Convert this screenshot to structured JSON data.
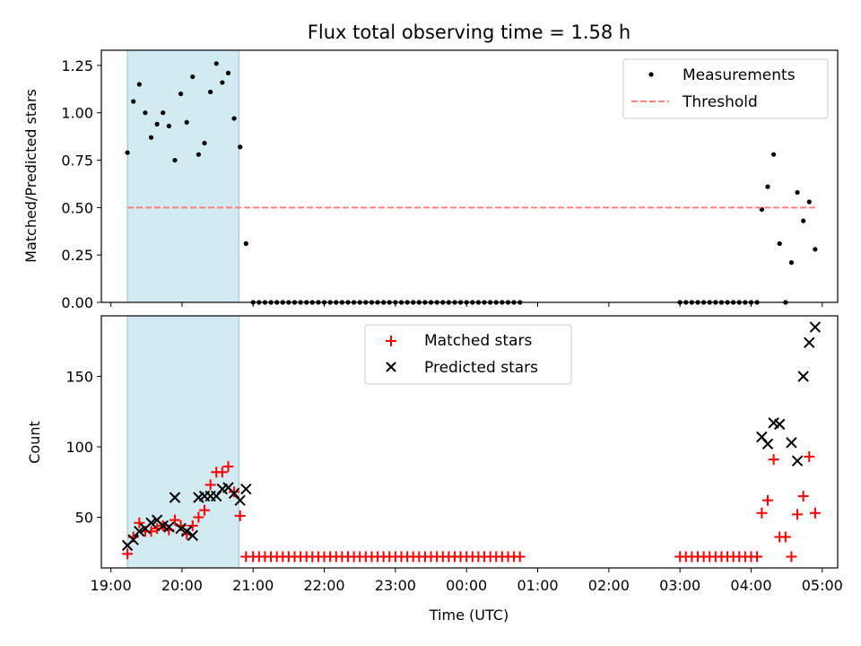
{
  "title": "Flux total observing time = 1.58 h",
  "chart_data": [
    {
      "type": "scatter",
      "panel": "top",
      "title": "Flux total observing time = 1.58 h",
      "xlabel": "",
      "ylabel": "Matched/Predicted stars",
      "xlim": [
        "18:52",
        "05:13"
      ],
      "ylim": [
        0,
        1.33
      ],
      "yticks": [
        0.0,
        0.25,
        0.5,
        0.75,
        1.0,
        1.25
      ],
      "ytick_labels": [
        "0.00",
        "0.25",
        "0.50",
        "0.75",
        "1.00",
        "1.25"
      ],
      "highlight_span": {
        "start": "19:14",
        "end": "20:48",
        "color": "#add8e6"
      },
      "legend": {
        "placement": "top-right",
        "entries": [
          "Measurements",
          "Threshold"
        ]
      },
      "series": [
        {
          "name": "Measurements",
          "marker": "dot",
          "color": "#000000",
          "points": [
            [
              "19:14",
              0.79
            ],
            [
              "19:19",
              1.06
            ],
            [
              "19:24",
              1.15
            ],
            [
              "19:29",
              1.0
            ],
            [
              "19:34",
              0.87
            ],
            [
              "19:39",
              0.94
            ],
            [
              "19:44",
              1.0
            ],
            [
              "19:49",
              0.93
            ],
            [
              "19:54",
              0.75
            ],
            [
              "19:59",
              1.1
            ],
            [
              "20:04",
              0.95
            ],
            [
              "20:09",
              1.19
            ],
            [
              "20:14",
              0.78
            ],
            [
              "20:19",
              0.84
            ],
            [
              "20:24",
              1.11
            ],
            [
              "20:29",
              1.26
            ],
            [
              "20:34",
              1.16
            ],
            [
              "20:39",
              1.21
            ],
            [
              "20:44",
              0.97
            ],
            [
              "20:49",
              0.82
            ],
            [
              "20:54",
              0.31
            ],
            [
              "21:00",
              0
            ],
            [
              "21:05",
              0
            ],
            [
              "21:10",
              0
            ],
            [
              "21:15",
              0
            ],
            [
              "21:20",
              0
            ],
            [
              "21:25",
              0
            ],
            [
              "21:30",
              0
            ],
            [
              "21:35",
              0
            ],
            [
              "21:40",
              0
            ],
            [
              "21:45",
              0
            ],
            [
              "21:50",
              0
            ],
            [
              "21:55",
              0
            ],
            [
              "22:00",
              0
            ],
            [
              "22:05",
              0
            ],
            [
              "22:10",
              0
            ],
            [
              "22:15",
              0
            ],
            [
              "22:20",
              0
            ],
            [
              "22:25",
              0
            ],
            [
              "22:30",
              0
            ],
            [
              "22:35",
              0
            ],
            [
              "22:40",
              0
            ],
            [
              "22:45",
              0
            ],
            [
              "22:50",
              0
            ],
            [
              "22:55",
              0
            ],
            [
              "23:00",
              0
            ],
            [
              "23:05",
              0
            ],
            [
              "23:10",
              0
            ],
            [
              "23:15",
              0
            ],
            [
              "23:20",
              0
            ],
            [
              "23:25",
              0
            ],
            [
              "23:30",
              0
            ],
            [
              "23:35",
              0
            ],
            [
              "23:40",
              0
            ],
            [
              "23:45",
              0
            ],
            [
              "23:50",
              0
            ],
            [
              "23:55",
              0
            ],
            [
              "00:00",
              0
            ],
            [
              "00:05",
              0
            ],
            [
              "00:10",
              0
            ],
            [
              "00:15",
              0
            ],
            [
              "00:20",
              0
            ],
            [
              "00:25",
              0
            ],
            [
              "00:30",
              0
            ],
            [
              "00:35",
              0
            ],
            [
              "00:40",
              0
            ],
            [
              "00:45",
              0
            ],
            [
              "03:00",
              0
            ],
            [
              "03:05",
              0
            ],
            [
              "03:10",
              0
            ],
            [
              "03:15",
              0
            ],
            [
              "03:20",
              0
            ],
            [
              "03:25",
              0
            ],
            [
              "03:30",
              0
            ],
            [
              "03:35",
              0
            ],
            [
              "03:40",
              0
            ],
            [
              "03:45",
              0
            ],
            [
              "03:50",
              0
            ],
            [
              "03:55",
              0
            ],
            [
              "04:00",
              0
            ],
            [
              "04:05",
              0
            ],
            [
              "04:09",
              0.49
            ],
            [
              "04:14",
              0.61
            ],
            [
              "04:19",
              0.78
            ],
            [
              "04:24",
              0.31
            ],
            [
              "04:29",
              0.0
            ],
            [
              "04:34",
              0.21
            ],
            [
              "04:39",
              0.58
            ],
            [
              "04:44",
              0.43
            ],
            [
              "04:49",
              0.53
            ],
            [
              "04:54",
              0.28
            ]
          ]
        },
        {
          "name": "Threshold",
          "marker": "dashed-line",
          "color": "#ff7f7f",
          "points": [
            [
              "19:14",
              0.5
            ],
            [
              "04:54",
              0.5
            ]
          ]
        }
      ]
    },
    {
      "type": "scatter",
      "panel": "bottom",
      "title": "",
      "xlabel": "Time (UTC)",
      "ylabel": "Count",
      "xlim": [
        "18:52",
        "05:13"
      ],
      "ylim": [
        14,
        193
      ],
      "yticks": [
        50,
        100,
        150
      ],
      "xticks": [
        "19:00",
        "20:00",
        "21:00",
        "22:00",
        "23:00",
        "00:00",
        "01:00",
        "02:00",
        "03:00",
        "04:00",
        "05:00"
      ],
      "highlight_span": {
        "start": "19:14",
        "end": "20:48",
        "color": "#add8e6"
      },
      "legend": {
        "placement": "top-center",
        "entries": [
          "Matched stars",
          "Predicted stars"
        ]
      },
      "series": [
        {
          "name": "Matched stars",
          "marker": "plus",
          "color": "#ff0000",
          "points": [
            [
              "19:14",
              24
            ],
            [
              "19:19",
              36
            ],
            [
              "19:24",
              46
            ],
            [
              "19:29",
              40
            ],
            [
              "19:34",
              40
            ],
            [
              "19:39",
              42
            ],
            [
              "19:44",
              44
            ],
            [
              "19:49",
              41
            ],
            [
              "19:54",
              48
            ],
            [
              "19:59",
              44
            ],
            [
              "20:04",
              38
            ],
            [
              "20:09",
              44
            ],
            [
              "20:14",
              50
            ],
            [
              "20:19",
              55
            ],
            [
              "20:24",
              73
            ],
            [
              "20:29",
              82
            ],
            [
              "20:34",
              82
            ],
            [
              "20:39",
              86
            ],
            [
              "20:44",
              68
            ],
            [
              "20:49",
              51
            ],
            [
              "20:54",
              22
            ],
            [
              "21:00",
              22
            ],
            [
              "21:05",
              22
            ],
            [
              "21:10",
              22
            ],
            [
              "21:15",
              22
            ],
            [
              "21:20",
              22
            ],
            [
              "21:25",
              22
            ],
            [
              "21:30",
              22
            ],
            [
              "21:35",
              22
            ],
            [
              "21:40",
              22
            ],
            [
              "21:45",
              22
            ],
            [
              "21:50",
              22
            ],
            [
              "21:55",
              22
            ],
            [
              "22:00",
              22
            ],
            [
              "22:05",
              22
            ],
            [
              "22:10",
              22
            ],
            [
              "22:15",
              22
            ],
            [
              "22:20",
              22
            ],
            [
              "22:25",
              22
            ],
            [
              "22:30",
              22
            ],
            [
              "22:35",
              22
            ],
            [
              "22:40",
              22
            ],
            [
              "22:45",
              22
            ],
            [
              "22:50",
              22
            ],
            [
              "22:55",
              22
            ],
            [
              "23:00",
              22
            ],
            [
              "23:05",
              22
            ],
            [
              "23:10",
              22
            ],
            [
              "23:15",
              22
            ],
            [
              "23:20",
              22
            ],
            [
              "23:25",
              22
            ],
            [
              "23:30",
              22
            ],
            [
              "23:35",
              22
            ],
            [
              "23:40",
              22
            ],
            [
              "23:45",
              22
            ],
            [
              "23:50",
              22
            ],
            [
              "23:55",
              22
            ],
            [
              "00:00",
              22
            ],
            [
              "00:05",
              22
            ],
            [
              "00:10",
              22
            ],
            [
              "00:15",
              22
            ],
            [
              "00:20",
              22
            ],
            [
              "00:25",
              22
            ],
            [
              "00:30",
              22
            ],
            [
              "00:35",
              22
            ],
            [
              "00:40",
              22
            ],
            [
              "00:45",
              22
            ],
            [
              "03:00",
              22
            ],
            [
              "03:05",
              22
            ],
            [
              "03:10",
              22
            ],
            [
              "03:15",
              22
            ],
            [
              "03:20",
              22
            ],
            [
              "03:25",
              22
            ],
            [
              "03:30",
              22
            ],
            [
              "03:35",
              22
            ],
            [
              "03:40",
              22
            ],
            [
              "03:45",
              22
            ],
            [
              "03:50",
              22
            ],
            [
              "03:55",
              22
            ],
            [
              "04:00",
              22
            ],
            [
              "04:05",
              22
            ],
            [
              "04:09",
              53
            ],
            [
              "04:14",
              62
            ],
            [
              "04:19",
              91
            ],
            [
              "04:24",
              36
            ],
            [
              "04:29",
              36
            ],
            [
              "04:34",
              22
            ],
            [
              "04:39",
              52
            ],
            [
              "04:44",
              65
            ],
            [
              "04:49",
              93
            ],
            [
              "04:54",
              53
            ]
          ]
        },
        {
          "name": "Predicted stars",
          "marker": "x",
          "color": "#000000",
          "points": [
            [
              "19:14",
              30
            ],
            [
              "19:19",
              34
            ],
            [
              "19:24",
              40
            ],
            [
              "19:29",
              42
            ],
            [
              "19:34",
              46
            ],
            [
              "19:39",
              48
            ],
            [
              "19:44",
              44
            ],
            [
              "19:49",
              43
            ],
            [
              "19:54",
              64
            ],
            [
              "19:59",
              42
            ],
            [
              "20:04",
              40
            ],
            [
              "20:09",
              37
            ],
            [
              "20:14",
              64
            ],
            [
              "20:19",
              65
            ],
            [
              "20:24",
              65
            ],
            [
              "20:29",
              65
            ],
            [
              "20:34",
              70
            ],
            [
              "20:39",
              71
            ],
            [
              "20:44",
              67
            ],
            [
              "20:49",
              62
            ],
            [
              "20:54",
              70
            ],
            [
              "04:09",
              107
            ],
            [
              "04:14",
              102
            ],
            [
              "04:19",
              117
            ],
            [
              "04:24",
              116
            ],
            [
              "04:34",
              103
            ],
            [
              "04:39",
              90
            ],
            [
              "04:44",
              150
            ],
            [
              "04:49",
              174
            ],
            [
              "04:54",
              185
            ]
          ]
        }
      ]
    }
  ]
}
